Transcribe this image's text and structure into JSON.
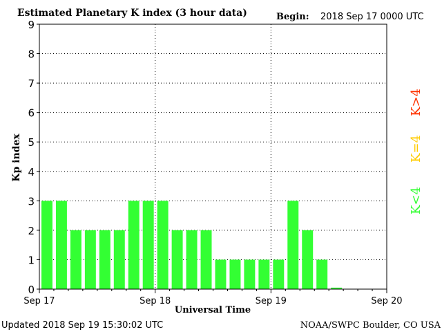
{
  "header": {
    "title": "Estimated Planetary K index (3 hour data)",
    "begin_label": "Begin:",
    "begin_value": "2018 Sep 17 0000 UTC"
  },
  "footer": {
    "updated": "Updated 2018 Sep 19 15:30:02 UTC",
    "source": "NOAA/SWPC Boulder, CO USA"
  },
  "legend": {
    "high": "K>4",
    "mid": "K=4",
    "low": "K<4"
  },
  "colors": {
    "low": "#33ff33",
    "mid": "#ffcc00",
    "high": "#ff3300",
    "axis": "#000000",
    "grid": "#000000",
    "background": "#ffffff"
  },
  "chart_data": {
    "type": "bar",
    "title": "Estimated Planetary K index (3 hour data)",
    "xlabel": "Universal Time",
    "ylabel": "Kp index",
    "ylim": [
      0,
      9
    ],
    "yticks": [
      "0",
      "1",
      "2",
      "3",
      "4",
      "5",
      "6",
      "7",
      "8",
      "9"
    ],
    "xticks": [
      "Sep 17",
      "Sep 18",
      "Sep 19",
      "Sep 20"
    ],
    "grid": true,
    "bars_per_day": 8,
    "days": 3,
    "values": [
      3,
      3,
      2,
      2,
      2,
      2,
      3,
      3,
      3,
      2,
      2,
      2,
      1,
      1,
      1,
      1,
      1,
      3,
      2,
      1,
      0.05
    ]
  }
}
